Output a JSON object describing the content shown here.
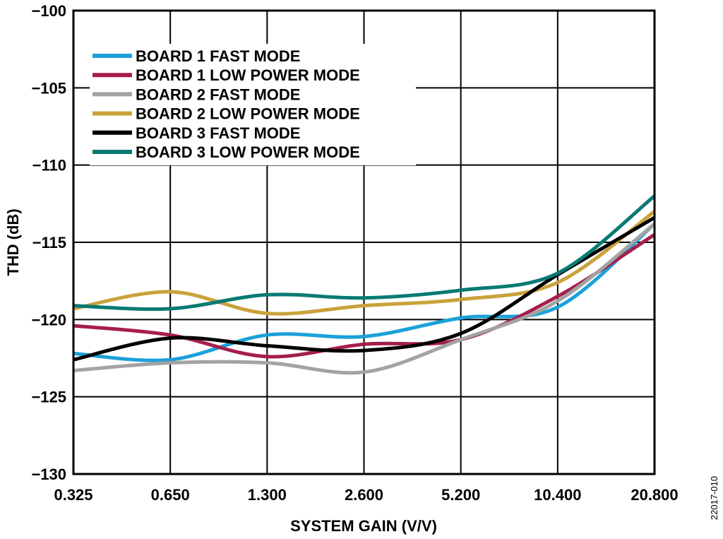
{
  "chart_data": {
    "type": "line",
    "xlabel": "SYSTEM GAIN (V/V)",
    "ylabel": "THD (dB)",
    "categories": [
      "0.325",
      "0.650",
      "1.300",
      "2.600",
      "5.200",
      "10.400",
      "20.800"
    ],
    "ylim": [
      -130,
      -100
    ],
    "yticks": [
      -100,
      -105,
      -110,
      -115,
      -120,
      -125,
      -130
    ],
    "ytick_labels": [
      "−100",
      "−105",
      "−110",
      "−115",
      "−120",
      "−125",
      "−130"
    ],
    "grid": true,
    "legend_position": "top-left",
    "series": [
      {
        "name": "BOARD 1 FAST MODE",
        "color": "#1BA1D8",
        "values": [
          -122.2,
          -122.6,
          -121.0,
          -121.1,
          -119.9,
          -119.2,
          -113.8
        ]
      },
      {
        "name": "BOARD 1 LOW POWER MODE",
        "color": "#A61E4D",
        "values": [
          -120.4,
          -121.0,
          -122.4,
          -121.6,
          -121.3,
          -118.5,
          -114.5
        ]
      },
      {
        "name": "BOARD 2 FAST MODE",
        "color": "#A3A3A3",
        "values": [
          -123.3,
          -122.8,
          -122.8,
          -123.4,
          -121.3,
          -118.8,
          -113.8
        ]
      },
      {
        "name": "BOARD 2 LOW POWER MODE",
        "color": "#C9A23A",
        "values": [
          -119.3,
          -118.2,
          -119.6,
          -119.1,
          -118.7,
          -117.6,
          -113.0
        ]
      },
      {
        "name": "BOARD 3 FAST MODE",
        "color": "#000000",
        "values": [
          -122.6,
          -121.2,
          -121.7,
          -122.0,
          -120.9,
          -117.1,
          -113.4
        ]
      },
      {
        "name": "BOARD 3 LOW POWER MODE",
        "color": "#087A73",
        "values": [
          -119.1,
          -119.3,
          -118.4,
          -118.6,
          -118.1,
          -117.0,
          -112.0
        ]
      }
    ]
  },
  "figure_id": "22017-010"
}
